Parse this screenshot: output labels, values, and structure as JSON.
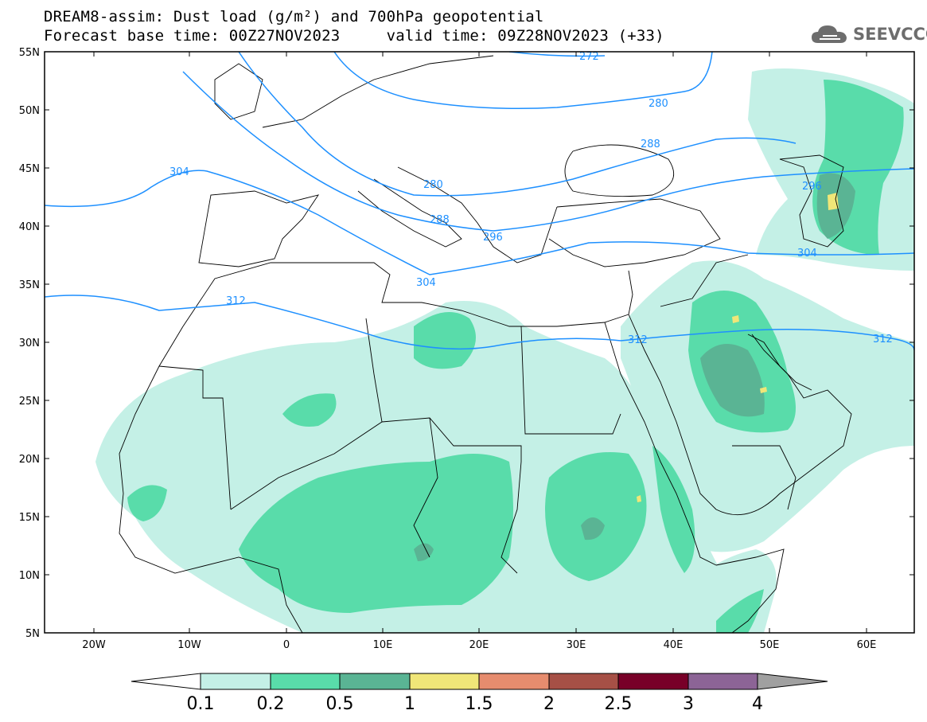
{
  "header": {
    "title_line1": "DREAM8-assim: Dust load (g/m²) and 700hPa geopotential",
    "title_line2": "Forecast base time: 00Z27NOV2023     valid time: 09Z28NOV2023 (+33)"
  },
  "logo": {
    "text": "SEEVCCC",
    "icon": "cloud-icon"
  },
  "map": {
    "lat_labels": [
      "55N",
      "50N",
      "45N",
      "40N",
      "35N",
      "30N",
      "25N",
      "20N",
      "15N",
      "10N",
      "5N"
    ],
    "lon_labels": [
      "20W",
      "10W",
      "0",
      "10E",
      "20E",
      "30E",
      "40E",
      "50E",
      "60E"
    ],
    "contour_labels": [
      "272",
      "280",
      "288",
      "304",
      "280",
      "288",
      "296",
      "296",
      "304",
      "304",
      "312",
      "312",
      "312"
    ],
    "land_border_color": "#000000",
    "contour_color": "#1e90ff"
  },
  "colorbar": {
    "tick_labels": [
      "0.1",
      "0.2",
      "0.5",
      "1",
      "1.5",
      "2",
      "2.5",
      "3",
      "4"
    ],
    "colors": [
      "#c4f0e6",
      "#59dcaa",
      "#5ab494",
      "#f0e678",
      "#e68c6e",
      "#a65046",
      "#780028",
      "#8c6496"
    ],
    "under_color": "#ffffff",
    "over_color": "#a0a0a0"
  }
}
